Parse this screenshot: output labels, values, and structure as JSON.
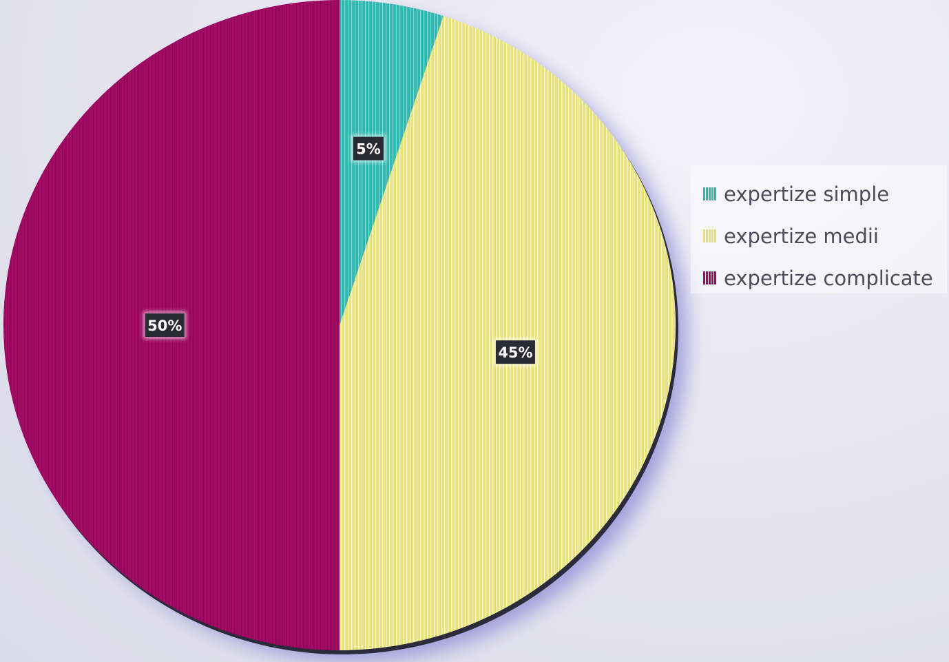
{
  "chart_data": {
    "type": "pie",
    "categories": [
      "expertize simple",
      "expertize medii",
      "expertize complicate"
    ],
    "values": [
      5,
      45,
      50
    ],
    "data_labels": [
      "5%",
      "45%",
      "50%"
    ],
    "colors": [
      "#2fb8b0",
      "#e8e27a",
      "#a30a66"
    ],
    "patterns": [
      "vertical-stripes",
      "vertical-stripes",
      "vertical-stripes"
    ],
    "start_angle": "12 o'clock",
    "direction": "clockwise",
    "legend_position": "right"
  },
  "legend": {
    "items": [
      {
        "label": "expertize simple",
        "color": "#2fb8b0"
      },
      {
        "label": "expertize medii",
        "color": "#e6df72"
      },
      {
        "label": "expertize complicate",
        "color": "#9e0a62"
      }
    ]
  }
}
